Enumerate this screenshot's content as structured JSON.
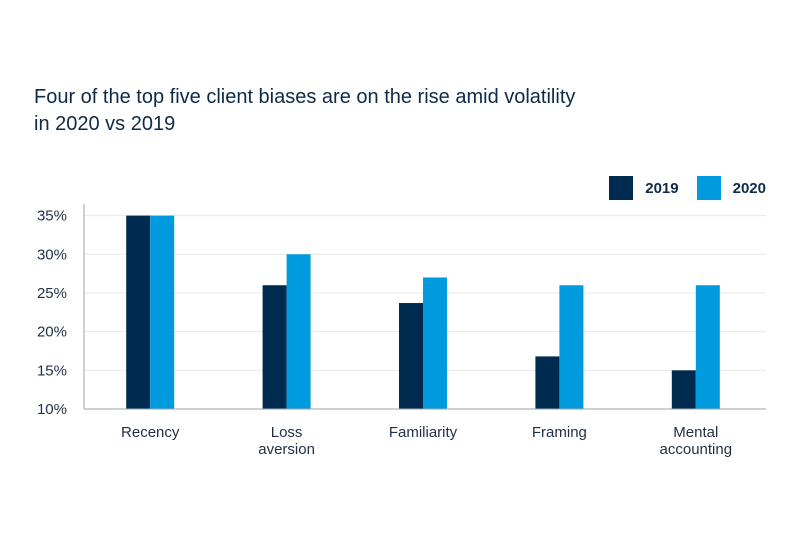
{
  "title_line1": "Four of the top five client biases are on the rise amid volatility",
  "title_line2": "in 2020 vs 2019",
  "chart_data": {
    "type": "bar",
    "title": "Four of the top five client biases are on the rise amid volatility in 2020 vs 2019",
    "categories": [
      [
        "Recency"
      ],
      [
        "Loss",
        "aversion"
      ],
      [
        "Familiarity"
      ],
      [
        "Framing"
      ],
      [
        "Mental",
        "accounting"
      ]
    ],
    "series": [
      {
        "name": "2019",
        "color": "#002b50",
        "values": [
          35,
          26,
          23.7,
          16.8,
          15
        ]
      },
      {
        "name": "2020",
        "color": "#009bde",
        "values": [
          35,
          30,
          27,
          26,
          26
        ]
      }
    ],
    "ylim": [
      10,
      36.5
    ],
    "yticks": [
      10,
      15,
      20,
      25,
      30,
      35
    ],
    "ytick_labels": [
      "10%",
      "15%",
      "20%",
      "25%",
      "30%",
      "35%"
    ],
    "grid": true,
    "legend": "top-right"
  }
}
